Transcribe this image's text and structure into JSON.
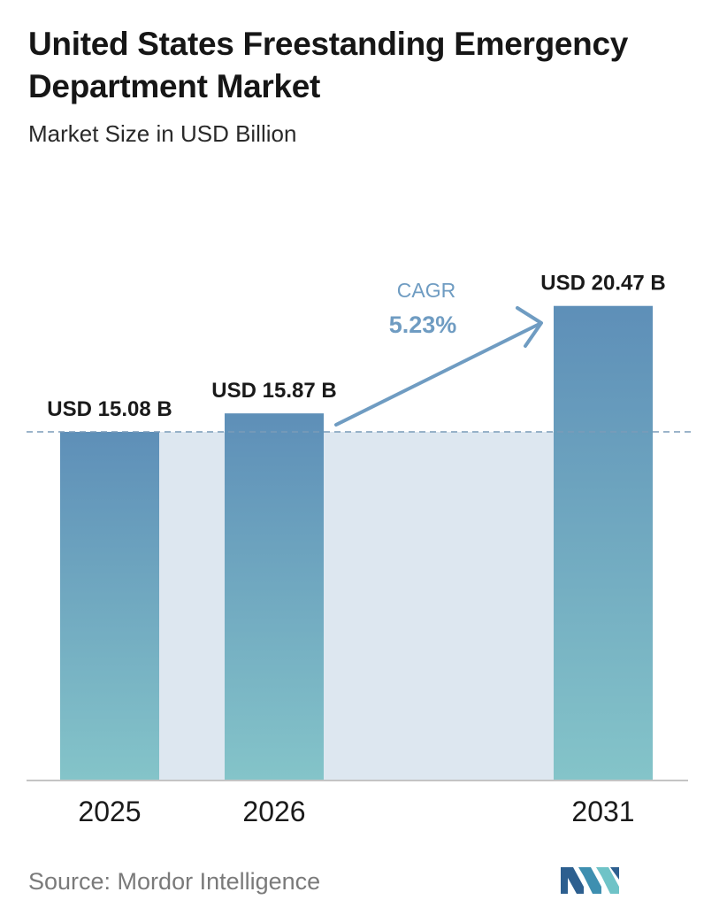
{
  "title": "United States Freestanding Emergency Department Market",
  "subtitle": "Market Size in USD Billion",
  "source": "Source:  Mordor Intelligence",
  "chart_data": {
    "type": "bar",
    "categories": [
      "2025",
      "2026",
      "2031"
    ],
    "values": [
      15.08,
      15.87,
      20.47
    ],
    "value_labels": [
      "USD 15.08 B",
      "USD 15.87 B",
      "USD 20.47 B"
    ],
    "title": "United States Freestanding Emergency Department Market",
    "subtitle": "Market Size in USD Billion",
    "unit": "USD Billion",
    "annotation": {
      "label": "CAGR",
      "value": "5.23%"
    },
    "reference_line": "dashed line at 2025 value",
    "grid": false,
    "legend": "none"
  },
  "colors": {
    "bar_top": "#5e8fb8",
    "bar_bottom": "#84c4c9",
    "band": "#dde7f0",
    "arrow": "#6f9cc2",
    "axis": "#bfbfbf"
  }
}
